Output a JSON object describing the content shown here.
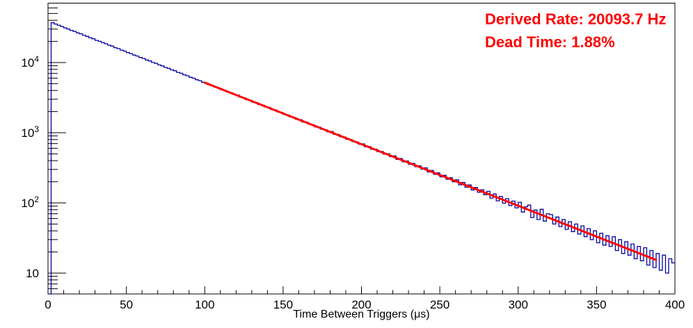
{
  "annotation": {
    "derived_rate": "Derived Rate: 20093.7 Hz",
    "dead_time": "Dead Time: 1.88%",
    "color": "#ff0000"
  },
  "chart_data": {
    "type": "line",
    "subtype": "step-histogram-log-y",
    "title": "",
    "xlabel": "Time Between Triggers (μs)",
    "ylabel": "",
    "x_range": [
      0,
      400
    ],
    "y_range": [
      5,
      70000
    ],
    "y_scale": "log",
    "grid": false,
    "legend": "none",
    "x_major_ticks": [
      0,
      50,
      100,
      150,
      200,
      250,
      300,
      350,
      400
    ],
    "x_minor_step": 10,
    "y_ticks": [
      {
        "value": 10,
        "base": "10",
        "exp": ""
      },
      {
        "value": 100,
        "base": "10",
        "exp": "2"
      },
      {
        "value": 1000,
        "base": "10",
        "exp": "3"
      },
      {
        "value": 10000,
        "base": "10",
        "exp": "4"
      }
    ],
    "hist_color": "#0000a0",
    "axis_color": "#000000",
    "bin_start": 0,
    "bin_width": 2,
    "counts": [
      5,
      36900,
      35400,
      33900,
      32600,
      31100,
      30100,
      28700,
      27800,
      26500,
      25700,
      24400,
      23600,
      22500,
      21800,
      20700,
      20100,
      19150,
      18560,
      17700,
      17150,
      16280,
      15800,
      15030,
      14560,
      13850,
      13420,
      12780,
      12390,
      11800,
      11440,
      10870,
      10540,
      10030,
      9720,
      9250,
      8960,
      8530,
      8270,
      7870,
      7640,
      7250,
      7040,
      6700,
      6490,
      6170,
      5990,
      5690,
      5520,
      5250,
      5120,
      4830,
      4700,
      4460,
      4350,
      4100,
      4000,
      3790,
      3690,
      3500,
      3440,
      3210,
      3150,
      2970,
      2900,
      2730,
      2680,
      2520,
      2470,
      2330,
      2300,
      2140,
      2110,
      1980,
      1940,
      1820,
      1790,
      1680,
      1650,
      1550,
      1540,
      1420,
      1410,
      1320,
      1300,
      1210,
      1200,
      1120,
      1100,
      1030,
      1040,
      950,
      945,
      875,
      870,
      805,
      800,
      745,
      740,
      685,
      695,
      630,
      635,
      580,
      585,
      535,
      540,
      495,
      500,
      455,
      468,
      418,
      430,
      385,
      395,
      355,
      365,
      328,
      338,
      302,
      316,
      276,
      290,
      255,
      268,
      235,
      247,
      217,
      228,
      200,
      213,
      181,
      196,
      167,
      180,
      153,
      166,
      142,
      154,
      131,
      146,
      117,
      134,
      107,
      124,
      99,
      115,
      92,
      106,
      85,
      102,
      74,
      88,
      93,
      62,
      79,
      58,
      81,
      55,
      70,
      68,
      50,
      63,
      46,
      58,
      42,
      54,
      39,
      50,
      36,
      47,
      33,
      43,
      30,
      40,
      27,
      37,
      25,
      34,
      24,
      33,
      21,
      30,
      19,
      28,
      18,
      26,
      16,
      24,
      15,
      23,
      13,
      21,
      12,
      19,
      11,
      18,
      10,
      16,
      14
    ],
    "fit_line": {
      "color": "#ff0000",
      "x_start": 100,
      "y_start": 5170,
      "x_end": 388,
      "y_end": 15.4
    }
  }
}
